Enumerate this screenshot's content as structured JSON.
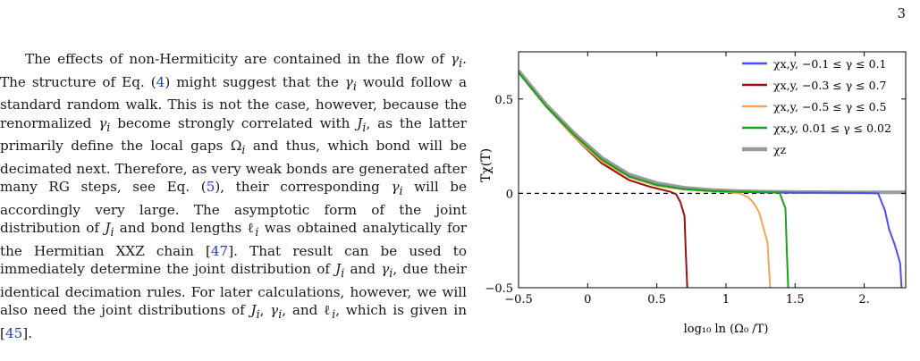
{
  "page": {
    "number": "3"
  },
  "paragraph": {
    "t1": "The effects of non-Hermiticity are contained in the flow of ",
    "t2": "γ",
    "t3": "i",
    "t4": ". The structure of Eq. (",
    "t5": "4",
    "t6": ") might suggest that the ",
    "t7": "γ",
    "t8": "i",
    "t9": " would follow a standard random walk. This is not the case, however, because the renormalized ",
    "t10": "γ",
    "t11": "i",
    "t12": " become strongly correlated with ",
    "t13": "J",
    "t14": "i",
    "t15": ", as the latter primarily define the local gaps ",
    "t16": "Ω",
    "t17": "i",
    "t18": " and thus, which bond will be decimated next. Therefore, as very weak bonds are generated after many RG steps, see Eq. (",
    "t19": "5",
    "t20": "), their corresponding ",
    "t21": "γ",
    "t22": "i",
    "t23": " will be accordingly very large. The asymptotic form of the joint distribution of ",
    "t24": "J",
    "t25": "i",
    "t26": " and bond lengths ",
    "t27": "ℓ",
    "t28": "i",
    "t29": " was obtained analytically for the Hermitian XXZ chain [",
    "t30": "47",
    "t31": "]. That result can be used to immediately determine the joint distribution of ",
    "t32": "J",
    "t33": "i",
    "t34": " and ",
    "t35": "γ",
    "t36": "i",
    "t37": ", due their identical decimation rules. For later calculations, however, we will also need the joint distributions of ",
    "t38": "J",
    "t39": "i",
    "t40": ", ",
    "t41": "γ",
    "t42": "i",
    "t43": ", and ",
    "t44": "ℓ",
    "t45": "i",
    "t46": ", which is given in [",
    "t47": "45",
    "t48": "]."
  },
  "figure": {
    "ylabel": "Tχ(T)",
    "xlabel": "log₁₀ ln (Ω₀ /T)"
  },
  "chart_data": {
    "type": "line",
    "xlim": [
      -0.5,
      2.3
    ],
    "ylim": [
      -0.5,
      0.75
    ],
    "xticks": [
      -0.5,
      0,
      0.5,
      1,
      1.5,
      2
    ],
    "xtick_labels": [
      "−0.5",
      "0",
      "0.5",
      "1",
      "1.5",
      "2."
    ],
    "yticks": [
      -0.5,
      0,
      0.5
    ],
    "ytick_labels": [
      "−0.5",
      "0",
      "0.5"
    ],
    "reference_line": {
      "y": 0,
      "style": "dashed"
    },
    "legend_position": "top-right",
    "series": [
      {
        "name": "χx,y, −0.1 ≤ γ ≤ 0.1",
        "color": "#4b50f0",
        "width": 2,
        "x": [
          -0.5,
          -0.3,
          -0.1,
          0.1,
          0.3,
          0.5,
          0.7,
          0.9,
          1.2,
          1.5,
          1.8,
          2.0,
          2.1,
          2.15,
          2.18,
          2.22,
          2.26,
          2.27
        ],
        "y": [
          0.64,
          0.46,
          0.31,
          0.18,
          0.09,
          0.045,
          0.022,
          0.012,
          0.006,
          0.004,
          0.003,
          0.002,
          0.0,
          -0.09,
          -0.19,
          -0.27,
          -0.37,
          -0.5
        ]
      },
      {
        "name": "χx,y, −0.3 ≤ γ ≤ 0.7",
        "color": "#9b0f0f",
        "width": 2,
        "x": [
          -0.5,
          -0.3,
          -0.1,
          0.1,
          0.3,
          0.45,
          0.55,
          0.6,
          0.64,
          0.67,
          0.7,
          0.71,
          0.72
        ],
        "y": [
          0.64,
          0.46,
          0.3,
          0.16,
          0.07,
          0.035,
          0.017,
          0.008,
          -0.005,
          -0.045,
          -0.12,
          -0.32,
          -0.5
        ]
      },
      {
        "name": "χx,y, −0.5 ≤ γ ≤ 0.5",
        "color": "#f5a55a",
        "width": 2,
        "x": [
          -0.5,
          -0.3,
          -0.1,
          0.1,
          0.3,
          0.5,
          0.7,
          0.9,
          1.0,
          1.1,
          1.16,
          1.2,
          1.24,
          1.27,
          1.3,
          1.31,
          1.32
        ],
        "y": [
          0.64,
          0.46,
          0.3,
          0.17,
          0.085,
          0.04,
          0.02,
          0.01,
          0.006,
          0.0,
          -0.02,
          -0.05,
          -0.1,
          -0.18,
          -0.26,
          -0.38,
          -0.5
        ]
      },
      {
        "name": "χx,y, 0.01 ≤ γ ≤ 0.02",
        "color": "#17a317",
        "width": 2,
        "x": [
          -0.5,
          -0.3,
          -0.1,
          0.1,
          0.3,
          0.5,
          0.7,
          0.9,
          1.1,
          1.3,
          1.38,
          1.39,
          1.43,
          1.44,
          1.45
        ],
        "y": [
          0.64,
          0.46,
          0.31,
          0.18,
          0.09,
          0.045,
          0.022,
          0.012,
          0.008,
          0.005,
          0.004,
          0.0,
          -0.08,
          -0.3,
          -0.5
        ]
      },
      {
        "name": "χz",
        "color": "#9a9a9a",
        "width": 4,
        "x": [
          -0.5,
          -0.3,
          -0.1,
          0.1,
          0.3,
          0.5,
          0.7,
          0.9,
          1.1,
          1.3,
          1.5,
          1.7,
          1.9,
          2.1,
          2.3
        ],
        "y": [
          0.65,
          0.47,
          0.32,
          0.19,
          0.1,
          0.055,
          0.03,
          0.018,
          0.012,
          0.009,
          0.007,
          0.006,
          0.005,
          0.005,
          0.005
        ]
      }
    ]
  }
}
